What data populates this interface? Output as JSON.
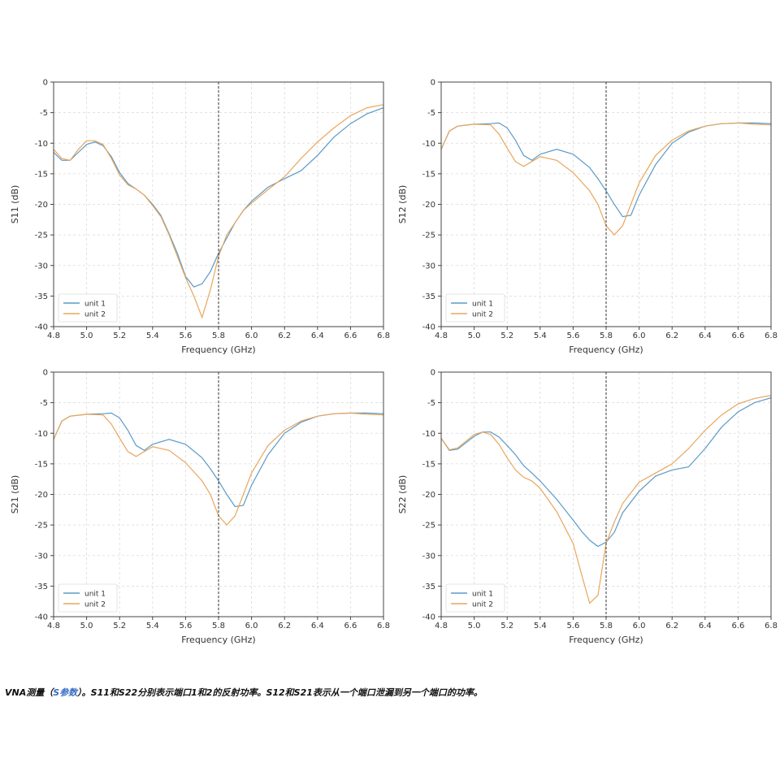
{
  "chart_data": [
    {
      "type": "line",
      "ylabel": "S11 (dB)",
      "xlabel": "Frequency (GHz)",
      "xlim": [
        4.8,
        6.8
      ],
      "ylim": [
        -40,
        0
      ],
      "xticks": [
        "4.8",
        "5.0",
        "5.2",
        "5.4",
        "5.6",
        "5.8",
        "6.0",
        "6.2",
        "6.4",
        "6.6",
        "6.8"
      ],
      "yticks": [
        "0",
        "-5",
        "-10",
        "-15",
        "-20",
        "-25",
        "-30",
        "-35",
        "-40"
      ],
      "marker_line_x": 5.8,
      "grid": true,
      "legend": "bottom-left",
      "series": [
        {
          "name": "unit 1",
          "color": "#5b9ac6",
          "x": [
            4.8,
            4.85,
            4.9,
            4.95,
            5.0,
            5.05,
            5.1,
            5.15,
            5.2,
            5.25,
            5.3,
            5.35,
            5.4,
            5.45,
            5.5,
            5.55,
            5.6,
            5.65,
            5.7,
            5.75,
            5.8,
            5.85,
            5.9,
            5.95,
            6.0,
            6.1,
            6.2,
            6.3,
            6.4,
            6.5,
            6.6,
            6.7,
            6.8
          ],
          "y": [
            -11.5,
            -12.8,
            -12.8,
            -11.5,
            -10.2,
            -9.8,
            -10.4,
            -12.2,
            -14.8,
            -16.6,
            -17.5,
            -18.5,
            -20,
            -21.8,
            -24.8,
            -28,
            -31.8,
            -33.5,
            -33,
            -31,
            -28,
            -25.5,
            -23,
            -21,
            -19.5,
            -17.2,
            -15.8,
            -14.5,
            -12,
            -9,
            -6.8,
            -5.2,
            -4.2
          ]
        },
        {
          "name": "unit 2",
          "color": "#e8a65c",
          "x": [
            4.8,
            4.85,
            4.9,
            4.95,
            5.0,
            5.05,
            5.1,
            5.15,
            5.2,
            5.25,
            5.3,
            5.35,
            5.4,
            5.45,
            5.5,
            5.55,
            5.6,
            5.65,
            5.7,
            5.75,
            5.8,
            5.85,
            5.9,
            5.95,
            6.0,
            6.1,
            6.2,
            6.3,
            6.4,
            6.5,
            6.6,
            6.7,
            6.8
          ],
          "y": [
            -11,
            -12.5,
            -12.8,
            -11,
            -9.6,
            -9.6,
            -10.2,
            -12.5,
            -15.2,
            -16.8,
            -17.5,
            -18.5,
            -20.2,
            -22,
            -25,
            -28.5,
            -32,
            -35,
            -38.5,
            -34,
            -28.5,
            -25,
            -23,
            -21,
            -19.8,
            -17.6,
            -15.5,
            -12.5,
            -9.8,
            -7.5,
            -5.5,
            -4.2,
            -3.7
          ]
        }
      ]
    },
    {
      "type": "line",
      "ylabel": "S12 (dB)",
      "xlabel": "Frequency (GHz)",
      "xlim": [
        4.8,
        6.8
      ],
      "ylim": [
        -40,
        0
      ],
      "xticks": [
        "4.8",
        "5.0",
        "5.2",
        "5.4",
        "5.6",
        "5.8",
        "6.0",
        "6.2",
        "6.4",
        "6.6",
        "6.8"
      ],
      "yticks": [
        "0",
        "-5",
        "-10",
        "-15",
        "-20",
        "-25",
        "-30",
        "-35",
        "-40"
      ],
      "marker_line_x": 5.8,
      "grid": true,
      "legend": "bottom-left",
      "series": [
        {
          "name": "unit 1",
          "color": "#5b9ac6",
          "x": [
            4.8,
            4.85,
            4.9,
            5.0,
            5.1,
            5.15,
            5.2,
            5.25,
            5.3,
            5.35,
            5.4,
            5.5,
            5.6,
            5.7,
            5.75,
            5.8,
            5.85,
            5.9,
            5.95,
            6.0,
            6.1,
            6.2,
            6.3,
            6.4,
            6.5,
            6.6,
            6.7,
            6.8
          ],
          "y": [
            -11,
            -8,
            -7.2,
            -6.9,
            -6.8,
            -6.7,
            -7.5,
            -9.5,
            -12,
            -12.8,
            -11.8,
            -11,
            -11.8,
            -14,
            -15.8,
            -17.8,
            -20,
            -22,
            -21.8,
            -18.5,
            -13.5,
            -10,
            -8.2,
            -7.2,
            -6.8,
            -6.7,
            -6.7,
            -6.8
          ]
        },
        {
          "name": "unit 2",
          "color": "#e8a65c",
          "x": [
            4.8,
            4.85,
            4.9,
            5.0,
            5.1,
            5.15,
            5.2,
            5.25,
            5.3,
            5.35,
            5.4,
            5.5,
            5.6,
            5.7,
            5.75,
            5.8,
            5.85,
            5.9,
            5.95,
            6.0,
            6.1,
            6.2,
            6.3,
            6.4,
            6.5,
            6.6,
            6.7,
            6.8
          ],
          "y": [
            -11,
            -8,
            -7.2,
            -6.9,
            -7,
            -8.5,
            -10.8,
            -13,
            -13.8,
            -13,
            -12.2,
            -12.8,
            -14.8,
            -17.8,
            -20,
            -23.5,
            -25,
            -23.5,
            -20,
            -16.5,
            -12,
            -9.5,
            -8,
            -7.2,
            -6.8,
            -6.7,
            -6.9,
            -7
          ]
        }
      ]
    },
    {
      "type": "line",
      "ylabel": "S21 (dB)",
      "xlabel": "Frequency (GHz)",
      "xlim": [
        4.8,
        6.8
      ],
      "ylim": [
        -40,
        0
      ],
      "xticks": [
        "4.8",
        "5.0",
        "5.2",
        "5.4",
        "5.6",
        "5.8",
        "6.0",
        "6.2",
        "6.4",
        "6.6",
        "6.8"
      ],
      "yticks": [
        "0",
        "-5",
        "-10",
        "-15",
        "-20",
        "-25",
        "-30",
        "-35",
        "-40"
      ],
      "marker_line_x": 5.8,
      "grid": true,
      "legend": "bottom-left",
      "series": [
        {
          "name": "unit 1",
          "color": "#5b9ac6",
          "x": [
            4.8,
            4.85,
            4.9,
            5.0,
            5.1,
            5.15,
            5.2,
            5.25,
            5.3,
            5.35,
            5.4,
            5.5,
            5.6,
            5.7,
            5.75,
            5.8,
            5.85,
            5.9,
            5.95,
            6.0,
            6.1,
            6.2,
            6.3,
            6.4,
            6.5,
            6.6,
            6.7,
            6.8
          ],
          "y": [
            -11,
            -8,
            -7.2,
            -6.9,
            -6.8,
            -6.7,
            -7.5,
            -9.5,
            -12,
            -12.8,
            -11.8,
            -11,
            -11.8,
            -14,
            -15.8,
            -17.8,
            -20,
            -22,
            -21.8,
            -18.5,
            -13.5,
            -10,
            -8.2,
            -7.2,
            -6.8,
            -6.7,
            -6.7,
            -6.8
          ]
        },
        {
          "name": "unit 2",
          "color": "#e8a65c",
          "x": [
            4.8,
            4.85,
            4.9,
            5.0,
            5.1,
            5.15,
            5.2,
            5.25,
            5.3,
            5.35,
            5.4,
            5.5,
            5.6,
            5.7,
            5.75,
            5.8,
            5.85,
            5.9,
            5.95,
            6.0,
            6.1,
            6.2,
            6.3,
            6.4,
            6.5,
            6.6,
            6.7,
            6.8
          ],
          "y": [
            -11,
            -8,
            -7.2,
            -6.9,
            -7,
            -8.5,
            -10.8,
            -13,
            -13.8,
            -13,
            -12.2,
            -12.8,
            -14.8,
            -17.8,
            -20,
            -23.5,
            -25,
            -23.5,
            -20,
            -16.5,
            -12,
            -9.5,
            -8,
            -7.2,
            -6.8,
            -6.7,
            -6.9,
            -7
          ]
        }
      ]
    },
    {
      "type": "line",
      "ylabel": "S22 (dB)",
      "xlabel": "Frequency (GHz)",
      "xlim": [
        4.8,
        6.8
      ],
      "ylim": [
        -40,
        0
      ],
      "xticks": [
        "4.8",
        "5.0",
        "5.2",
        "5.4",
        "5.6",
        "5.8",
        "6.0",
        "6.2",
        "6.4",
        "6.6",
        "6.8"
      ],
      "yticks": [
        "0",
        "-5",
        "-10",
        "-15",
        "-20",
        "-25",
        "-30",
        "-35",
        "-40"
      ],
      "marker_line_x": 5.8,
      "grid": true,
      "legend": "bottom-left",
      "series": [
        {
          "name": "unit 1",
          "color": "#5b9ac6",
          "x": [
            4.8,
            4.85,
            4.9,
            5.0,
            5.05,
            5.1,
            5.15,
            5.2,
            5.25,
            5.3,
            5.35,
            5.4,
            5.5,
            5.6,
            5.65,
            5.7,
            5.75,
            5.8,
            5.85,
            5.9,
            6.0,
            6.1,
            6.2,
            6.3,
            6.4,
            6.5,
            6.6,
            6.7,
            6.8
          ],
          "y": [
            -10.8,
            -12.8,
            -12.6,
            -10.5,
            -9.8,
            -9.8,
            -10.6,
            -12,
            -13.5,
            -15.3,
            -16.5,
            -17.8,
            -20.8,
            -24.2,
            -26,
            -27.5,
            -28.5,
            -27.8,
            -26.2,
            -23,
            -19.5,
            -17,
            -16,
            -15.5,
            -12.5,
            -9,
            -6.5,
            -5,
            -4.2
          ]
        },
        {
          "name": "unit 2",
          "color": "#e8a65c",
          "x": [
            4.8,
            4.85,
            4.9,
            5.0,
            5.05,
            5.1,
            5.15,
            5.2,
            5.25,
            5.3,
            5.35,
            5.4,
            5.5,
            5.6,
            5.65,
            5.7,
            5.75,
            5.8,
            5.85,
            5.9,
            6.0,
            6.1,
            6.2,
            6.3,
            6.4,
            6.5,
            6.6,
            6.7,
            6.8
          ],
          "y": [
            -10.8,
            -12.7,
            -12.4,
            -10.2,
            -9.8,
            -10.2,
            -11.8,
            -14,
            -16,
            -17.2,
            -17.8,
            -19,
            -22.8,
            -28,
            -33,
            -37.8,
            -36.5,
            -28,
            -24.5,
            -21.5,
            -18,
            -16.5,
            -15,
            -12.5,
            -9.5,
            -7,
            -5.2,
            -4.3,
            -3.8
          ]
        }
      ]
    }
  ],
  "caption": {
    "prefix": "VNA测量（",
    "link": "S参数",
    "suffix": "）。S11和S22分别表示端口1和2的反射功率。S12和S21表示从一个端口泄漏到另一个端口的功率。"
  }
}
